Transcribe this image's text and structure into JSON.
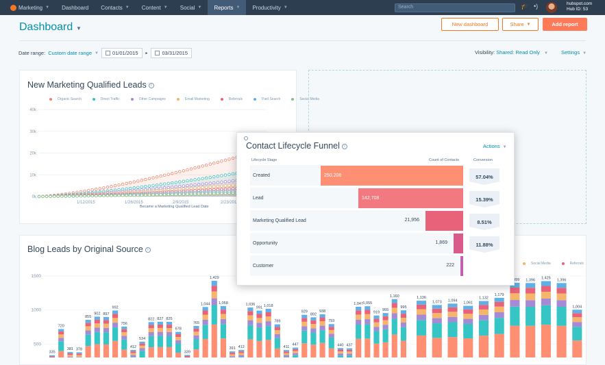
{
  "nav": {
    "items": [
      {
        "label": "Marketing",
        "caret": true,
        "logo": true
      },
      {
        "label": "Dashboard",
        "caret": false
      },
      {
        "label": "Contacts",
        "caret": true
      },
      {
        "label": "Content",
        "caret": true
      },
      {
        "label": "Social",
        "caret": true
      },
      {
        "label": "Reports",
        "caret": true,
        "active": true
      },
      {
        "label": "Productivity",
        "caret": true
      }
    ],
    "search_placeholder": "Search",
    "hub_domain": "hubspot.com",
    "hub_id": "Hub ID: 53",
    "icons": [
      "graduation-cap-icon",
      "broadcast-icon",
      "avatar"
    ]
  },
  "header": {
    "title": "Dashboard",
    "new_dashboard": "New dashboard",
    "share": "Share",
    "add_report": "Add report"
  },
  "filters": {
    "date_range_label": "Date range:",
    "date_range_value": "Custom date range",
    "start_date": "01/01/2015",
    "end_date": "03/31/2015",
    "visibility_label": "Visibility:",
    "visibility_value": "Shared: Read Only",
    "settings": "Settings"
  },
  "mql_card": {
    "title": "New Marketing Qualified Leads",
    "xlabel": "Became a Marketing Qualified Lead Date",
    "legend": [
      {
        "name": "Organic Search",
        "color": "#f2836b"
      },
      {
        "name": "Direct Traffic",
        "color": "#36c5c5"
      },
      {
        "name": "Other Campaigns",
        "color": "#a58bd6"
      },
      {
        "name": "Email Marketing",
        "color": "#f5b56b"
      },
      {
        "name": "Referrals",
        "color": "#e8637a"
      },
      {
        "name": "Paid Search",
        "color": "#5fb0e6"
      },
      {
        "name": "Social Media",
        "color": "#7cc576"
      }
    ]
  },
  "funnel": {
    "title": "Contact Lifecycle Funnel",
    "actions": "Actions",
    "col_stage": "Lifecycle Stage",
    "col_count": "Count of Contacts",
    "col_conv": "Conversion",
    "rows": [
      {
        "stage": "Created",
        "count": "250,206",
        "n": 250206,
        "color": "#ff8f73",
        "conv": "57.04%"
      },
      {
        "stage": "Lead",
        "count": "142,708",
        "n": 142708,
        "color": "#f2797f",
        "conv": "15.39%"
      },
      {
        "stage": "Marketing Qualified Lead",
        "count": "21,956",
        "n": 21956,
        "color": "#e8637a",
        "conv": "8.51%"
      },
      {
        "stage": "Opportunity",
        "count": "1,869",
        "n": 1869,
        "color": "#d85b8c",
        "conv": "11.88%"
      },
      {
        "stage": "Customer",
        "count": "222",
        "n": 222,
        "color": "#c35fb1",
        "conv": ""
      }
    ]
  },
  "blog_card": {
    "title": "Blog Leads by Original Source",
    "legend": [
      {
        "name": "Social Media",
        "color": "#f5b56b"
      },
      {
        "name": "Referrals",
        "color": "#e8637a"
      }
    ]
  },
  "chart_data": [
    {
      "type": "line",
      "title": "New Marketing Qualified Leads",
      "xlabel": "Became a Marketing Qualified Lead Date",
      "ylabel": "",
      "x_ticks": [
        "1/12/2015",
        "1/26/2015",
        "2/9/2015",
        "2/23/2015"
      ],
      "y_ticks": [
        "0k",
        "10k",
        "20k",
        "30k",
        "40k"
      ],
      "ylim": [
        0,
        40000
      ],
      "series": [
        {
          "name": "Organic Search",
          "color": "#f2836b",
          "end": 22000
        },
        {
          "name": "Direct Traffic",
          "color": "#36c5c5",
          "end": 13000
        },
        {
          "name": "Other Campaigns",
          "color": "#a58bd6",
          "end": 9000
        },
        {
          "name": "Email Marketing",
          "color": "#f5b56b",
          "end": 6500
        },
        {
          "name": "Referrals",
          "color": "#e8637a",
          "end": 4500
        },
        {
          "name": "Paid Search",
          "color": "#5fb0e6",
          "end": 3000
        },
        {
          "name": "Social Media",
          "color": "#7cc576",
          "end": 2000
        }
      ],
      "legend_position": "top"
    },
    {
      "type": "bar",
      "stacked": true,
      "title": "Blog Leads by Original Source",
      "y_ticks": [
        "500",
        "1000",
        "1500"
      ],
      "ylim": [
        0,
        1700
      ],
      "left_values": [
        335,
        720,
        381,
        378,
        855,
        902,
        897,
        992,
        756,
        412,
        534,
        822,
        827,
        825,
        678,
        339,
        765,
        1044,
        1429,
        1058,
        391,
        412,
        1036,
        991,
        1018,
        789,
        411,
        447,
        929,
        892,
        938,
        793,
        440,
        437,
        1047,
        1055,
        919,
        955,
        1160,
        995
      ],
      "right_values": [
        1136,
        1073,
        1094,
        1061,
        1132,
        1179,
        1399,
        1396,
        1425,
        1396,
        1004
      ]
    }
  ]
}
